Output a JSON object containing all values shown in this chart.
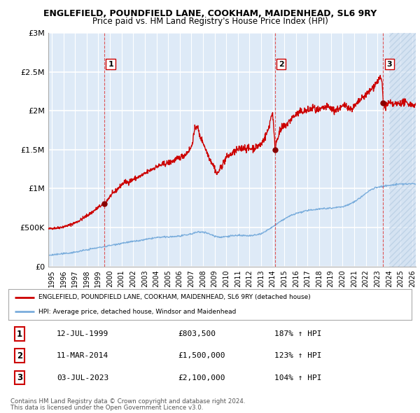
{
  "title1": "ENGLEFIELD, POUNDFIELD LANE, COOKHAM, MAIDENHEAD, SL6 9RY",
  "title2": "Price paid vs. HM Land Registry's House Price Index (HPI)",
  "ylabel_ticks": [
    "£0",
    "£500K",
    "£1M",
    "£1.5M",
    "£2M",
    "£2.5M",
    "£3M"
  ],
  "ytick_values": [
    0,
    500000,
    1000000,
    1500000,
    2000000,
    2500000,
    3000000
  ],
  "ylim": [
    0,
    3000000
  ],
  "xlim_start": 1994.7,
  "xlim_end": 2026.3,
  "sale_dates": [
    1999.53,
    2014.19,
    2023.5
  ],
  "sale_prices": [
    803500,
    1500000,
    2100000
  ],
  "sale_labels": [
    "1",
    "2",
    "3"
  ],
  "line_color_property": "#cc0000",
  "line_color_hpi": "#7aaddc",
  "background_color": "#deeaf7",
  "hatch_color": "#c8d8e8",
  "grid_color": "#ffffff",
  "legend_line1": "ENGLEFIELD, POUNDFIELD LANE, COOKHAM, MAIDENHEAD, SL6 9RY (detached house)",
  "legend_line2": "HPI: Average price, detached house, Windsor and Maidenhead",
  "table_rows": [
    [
      "1",
      "12-JUL-1999",
      "£803,500",
      "187% ↑ HPI"
    ],
    [
      "2",
      "11-MAR-2014",
      "£1,500,000",
      "123% ↑ HPI"
    ],
    [
      "3",
      "03-JUL-2023",
      "£2,100,000",
      "104% ↑ HPI"
    ]
  ],
  "footer1": "Contains HM Land Registry data © Crown copyright and database right 2024.",
  "footer2": "This data is licensed under the Open Government Licence v3.0.",
  "xtick_years": [
    1995,
    1996,
    1997,
    1998,
    1999,
    2000,
    2001,
    2002,
    2003,
    2004,
    2005,
    2006,
    2007,
    2008,
    2009,
    2010,
    2011,
    2012,
    2013,
    2014,
    2015,
    2016,
    2017,
    2018,
    2019,
    2020,
    2021,
    2022,
    2023,
    2024,
    2025,
    2026
  ],
  "hatch_start": 2024.0,
  "red_waypoints": [
    [
      1994.7,
      480000
    ],
    [
      1995.0,
      490000
    ],
    [
      1995.5,
      495000
    ],
    [
      1996.0,
      510000
    ],
    [
      1996.5,
      530000
    ],
    [
      1997.0,
      560000
    ],
    [
      1997.5,
      600000
    ],
    [
      1998.0,
      650000
    ],
    [
      1998.5,
      700000
    ],
    [
      1999.0,
      760000
    ],
    [
      1999.53,
      803500
    ],
    [
      2000.0,
      900000
    ],
    [
      2000.5,
      970000
    ],
    [
      2001.0,
      1050000
    ],
    [
      2001.3,
      1090000
    ],
    [
      2001.5,
      1080000
    ],
    [
      2002.0,
      1120000
    ],
    [
      2002.5,
      1150000
    ],
    [
      2003.0,
      1190000
    ],
    [
      2003.5,
      1240000
    ],
    [
      2004.0,
      1280000
    ],
    [
      2004.5,
      1310000
    ],
    [
      2005.0,
      1330000
    ],
    [
      2005.5,
      1360000
    ],
    [
      2006.0,
      1400000
    ],
    [
      2006.5,
      1440000
    ],
    [
      2007.0,
      1530000
    ],
    [
      2007.3,
      1760000
    ],
    [
      2007.5,
      1820000
    ],
    [
      2007.7,
      1680000
    ],
    [
      2008.0,
      1600000
    ],
    [
      2008.3,
      1480000
    ],
    [
      2008.6,
      1380000
    ],
    [
      2009.0,
      1270000
    ],
    [
      2009.2,
      1180000
    ],
    [
      2009.5,
      1260000
    ],
    [
      2010.0,
      1400000
    ],
    [
      2010.5,
      1450000
    ],
    [
      2011.0,
      1500000
    ],
    [
      2011.5,
      1530000
    ],
    [
      2012.0,
      1510000
    ],
    [
      2012.5,
      1530000
    ],
    [
      2013.0,
      1570000
    ],
    [
      2013.3,
      1650000
    ],
    [
      2013.6,
      1750000
    ],
    [
      2013.9,
      1950000
    ],
    [
      2014.0,
      1970000
    ],
    [
      2014.19,
      1500000
    ],
    [
      2014.3,
      1600000
    ],
    [
      2014.5,
      1700000
    ],
    [
      2014.8,
      1780000
    ],
    [
      2015.0,
      1800000
    ],
    [
      2015.3,
      1840000
    ],
    [
      2015.6,
      1900000
    ],
    [
      2016.0,
      1950000
    ],
    [
      2016.3,
      1980000
    ],
    [
      2016.7,
      2000000
    ],
    [
      2017.0,
      2000000
    ],
    [
      2017.3,
      2020000
    ],
    [
      2017.5,
      2050000
    ],
    [
      2017.7,
      2000000
    ],
    [
      2018.0,
      2000000
    ],
    [
      2018.3,
      2030000
    ],
    [
      2018.7,
      2050000
    ],
    [
      2019.0,
      2030000
    ],
    [
      2019.3,
      2000000
    ],
    [
      2019.7,
      2030000
    ],
    [
      2020.0,
      2050000
    ],
    [
      2020.3,
      2080000
    ],
    [
      2020.7,
      2020000
    ],
    [
      2021.0,
      2050000
    ],
    [
      2021.3,
      2100000
    ],
    [
      2021.6,
      2150000
    ],
    [
      2022.0,
      2200000
    ],
    [
      2022.3,
      2250000
    ],
    [
      2022.6,
      2300000
    ],
    [
      2023.0,
      2380000
    ],
    [
      2023.2,
      2420000
    ],
    [
      2023.4,
      2380000
    ],
    [
      2023.5,
      2100000
    ],
    [
      2023.6,
      2080000
    ],
    [
      2023.7,
      2060000
    ],
    [
      2023.8,
      2080000
    ],
    [
      2024.0,
      2100000
    ],
    [
      2024.3,
      2080000
    ],
    [
      2024.7,
      2090000
    ],
    [
      2025.0,
      2100000
    ],
    [
      2025.3,
      2110000
    ],
    [
      2025.7,
      2090000
    ],
    [
      2026.0,
      2080000
    ],
    [
      2026.3,
      2070000
    ]
  ],
  "blue_waypoints": [
    [
      1994.7,
      140000
    ],
    [
      1995.0,
      148000
    ],
    [
      1995.5,
      155000
    ],
    [
      1996.0,
      163000
    ],
    [
      1996.5,
      172000
    ],
    [
      1997.0,
      183000
    ],
    [
      1997.5,
      198000
    ],
    [
      1998.0,
      213000
    ],
    [
      1998.5,
      228000
    ],
    [
      1999.0,
      240000
    ],
    [
      1999.5,
      255000
    ],
    [
      2000.0,
      268000
    ],
    [
      2000.5,
      283000
    ],
    [
      2001.0,
      298000
    ],
    [
      2001.5,
      310000
    ],
    [
      2002.0,
      320000
    ],
    [
      2002.5,
      330000
    ],
    [
      2003.0,
      343000
    ],
    [
      2003.5,
      358000
    ],
    [
      2004.0,
      370000
    ],
    [
      2004.5,
      375000
    ],
    [
      2005.0,
      378000
    ],
    [
      2005.5,
      383000
    ],
    [
      2006.0,
      390000
    ],
    [
      2006.5,
      400000
    ],
    [
      2007.0,
      418000
    ],
    [
      2007.5,
      440000
    ],
    [
      2008.0,
      445000
    ],
    [
      2008.5,
      420000
    ],
    [
      2009.0,
      390000
    ],
    [
      2009.5,
      375000
    ],
    [
      2010.0,
      385000
    ],
    [
      2010.5,
      395000
    ],
    [
      2011.0,
      398000
    ],
    [
      2011.5,
      395000
    ],
    [
      2012.0,
      393000
    ],
    [
      2012.5,
      400000
    ],
    [
      2013.0,
      420000
    ],
    [
      2013.5,
      460000
    ],
    [
      2014.0,
      510000
    ],
    [
      2014.5,
      560000
    ],
    [
      2015.0,
      610000
    ],
    [
      2015.5,
      650000
    ],
    [
      2016.0,
      680000
    ],
    [
      2016.5,
      700000
    ],
    [
      2017.0,
      718000
    ],
    [
      2017.5,
      730000
    ],
    [
      2018.0,
      740000
    ],
    [
      2018.5,
      745000
    ],
    [
      2019.0,
      750000
    ],
    [
      2019.5,
      758000
    ],
    [
      2020.0,
      768000
    ],
    [
      2020.5,
      790000
    ],
    [
      2021.0,
      830000
    ],
    [
      2021.5,
      880000
    ],
    [
      2022.0,
      940000
    ],
    [
      2022.5,
      990000
    ],
    [
      2023.0,
      1020000
    ],
    [
      2023.5,
      1030000
    ],
    [
      2024.0,
      1040000
    ],
    [
      2024.5,
      1050000
    ],
    [
      2025.0,
      1060000
    ],
    [
      2025.5,
      1060000
    ],
    [
      2026.0,
      1060000
    ],
    [
      2026.3,
      1060000
    ]
  ]
}
